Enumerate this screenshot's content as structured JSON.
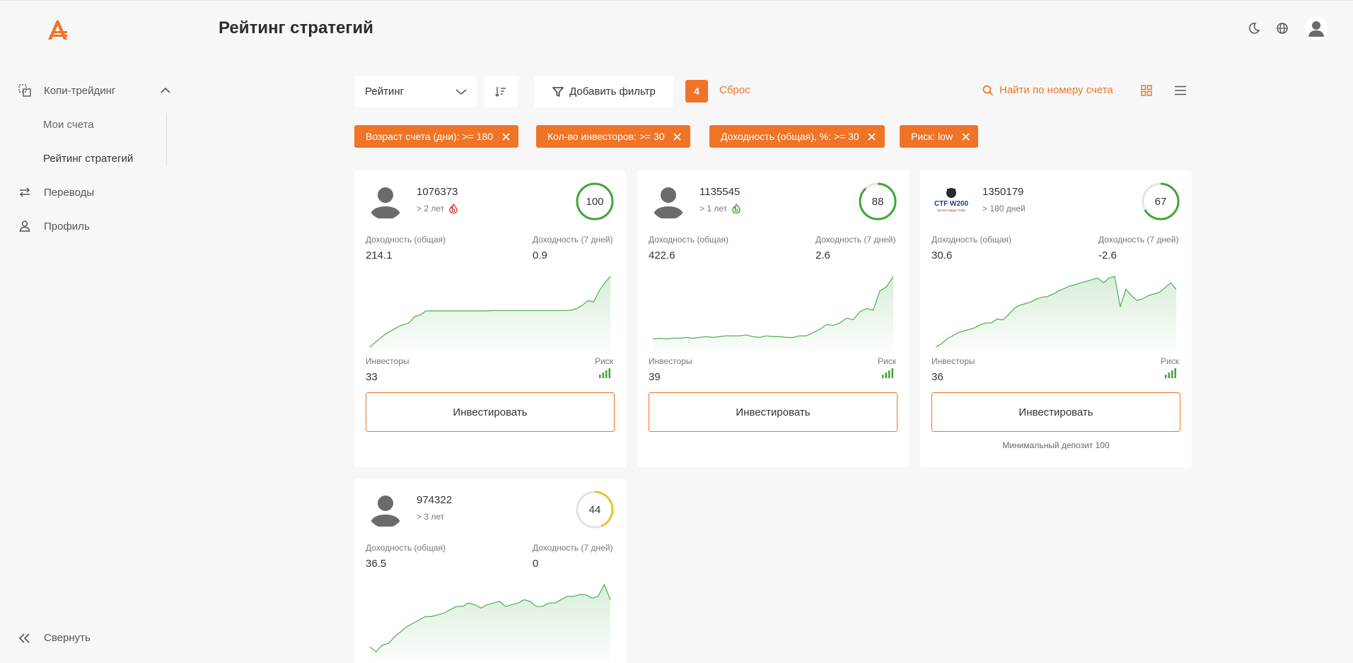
{
  "app": {
    "page_title": "Рейтинг стратегий"
  },
  "sidebar": {
    "copy_trading": "Копи-трейдинг",
    "my_accounts": "Мои счета",
    "strategy_rating": "Рейтинг стратегий",
    "transfers": "Переводы",
    "profile": "Профиль",
    "collapse": "Свернуть"
  },
  "toolbar": {
    "sort_select": "Рейтинг",
    "add_filter": "Добавить фильтр",
    "filter_count": "4",
    "reset": "Сброс",
    "search_account": "Найти по номеру счета"
  },
  "filters": [
    "Возраст счета (дни): >= 180",
    "Кол-во инвесторов: >= 30",
    "Доходность (общая), %: >= 30",
    "Риск: low"
  ],
  "labels": {
    "profit_total": "Доходность (общая)",
    "profit_7d": "Доходность (7 дней)",
    "investors": "Инвесторы",
    "risk": "Риск",
    "invest_button": "Инвестировать"
  },
  "colors": {
    "accent": "#f07427",
    "ring_green": "#3fa535",
    "ring_yellow": "#f2c12e",
    "chart_line": "#4caf50"
  },
  "cards": [
    {
      "account": "1076373",
      "age": "> 2 лет",
      "age_icon": "fire-red-icon",
      "rating": 100,
      "rating_color": "#3fa535",
      "profit_total": "214.1",
      "profit_7d": "0.9",
      "investors": "33",
      "risk_level": "low",
      "spark": [
        0,
        6,
        12,
        17,
        21,
        25,
        28,
        30,
        38,
        40,
        45,
        45,
        45,
        45,
        45,
        45,
        45,
        45,
        45,
        45,
        45,
        45,
        45.5,
        45.5,
        45.5,
        45.5,
        45.5,
        45.5,
        45.5,
        45.5,
        45.5,
        45.5,
        45.5,
        45.5,
        45.5,
        45.5,
        46,
        48,
        52,
        58,
        56,
        70,
        80,
        88
      ],
      "min_deposit": ""
    },
    {
      "account": "1135545",
      "age": "> 1 лет",
      "age_icon": "fire-green-icon",
      "rating": 88,
      "rating_color": "#3fa535",
      "profit_total": "422.6",
      "profit_7d": "2.6",
      "investors": "39",
      "risk_level": "low",
      "spark": [
        10,
        11,
        10,
        11,
        11,
        12,
        11,
        12,
        13,
        12,
        13,
        14,
        14,
        14,
        15,
        13,
        12,
        14,
        13,
        13,
        12,
        12,
        14,
        14,
        18,
        22,
        28,
        27,
        30,
        36,
        34,
        44,
        48,
        46,
        70,
        75,
        88
      ],
      "min_deposit": ""
    },
    {
      "account": "1350179",
      "age": "> 180 дней",
      "age_icon": "",
      "rating": 67,
      "rating_color": "#3fa535",
      "profit_total": "30.6",
      "profit_7d": "-2.6",
      "investors": "36",
      "risk_level": "low",
      "spark": [
        0,
        4,
        10,
        14,
        18,
        20,
        22,
        24,
        28,
        30,
        30,
        35,
        34,
        40,
        48,
        52,
        54,
        56,
        60,
        62,
        63,
        66,
        70,
        73,
        76,
        78,
        80,
        82,
        84,
        86,
        80,
        86,
        88,
        50,
        72,
        64,
        58,
        60,
        64,
        66,
        68,
        74,
        80,
        72
      ],
      "avatar_logo": "CTF W200",
      "avatar_sub": "Secret Happy Trade",
      "min_deposit": "Минимальный депозит 100"
    },
    {
      "account": "974322",
      "age": "> 3 лет",
      "age_icon": "",
      "rating": 44,
      "rating_color": "#f2c12e",
      "profit_total": "36.5",
      "profit_7d": "0",
      "investors": "",
      "risk_level": "",
      "spark": [
        10,
        4,
        12,
        14,
        22,
        28,
        34,
        38,
        42,
        46,
        46,
        48,
        50,
        54,
        58,
        58,
        62,
        60,
        56,
        60,
        62,
        64,
        58,
        60,
        62,
        66,
        64,
        58,
        58,
        62,
        62,
        66,
        70,
        70,
        72,
        72,
        68,
        70,
        84,
        66
      ],
      "min_deposit": ""
    }
  ]
}
